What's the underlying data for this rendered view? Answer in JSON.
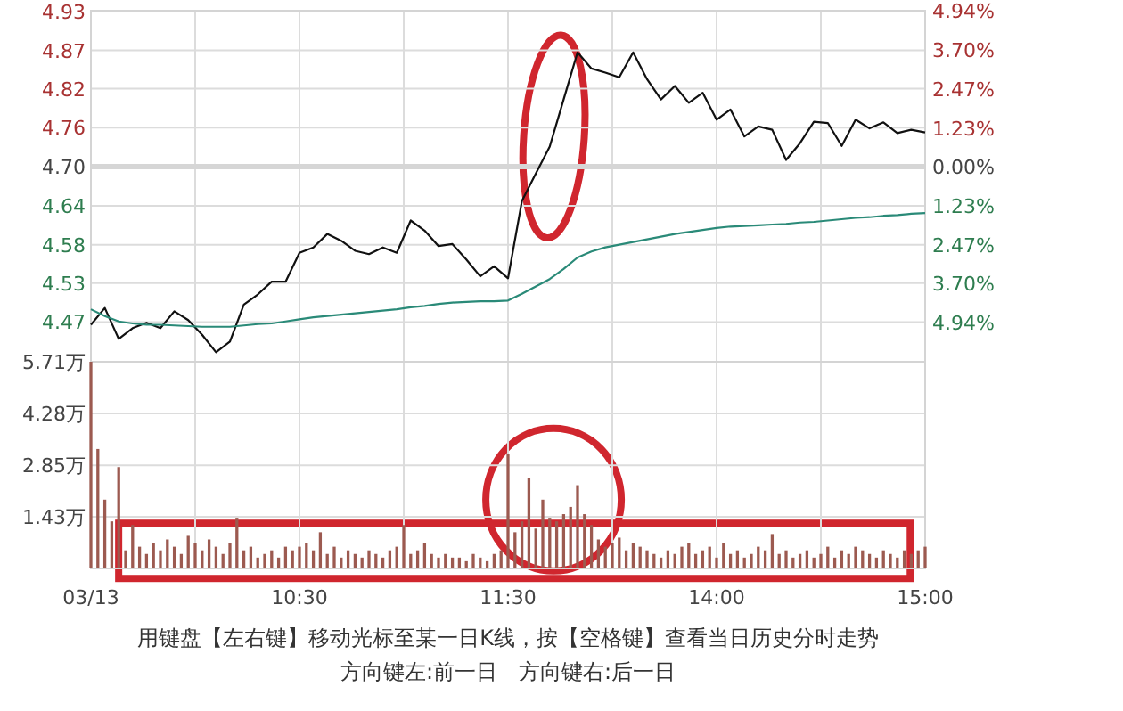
{
  "chart_data": [
    {
      "type": "line",
      "categories": [
        null,
        null,
        null,
        null,
        null,
        null,
        null,
        null,
        null,
        null,
        null,
        null,
        null,
        null,
        null,
        null,
        null,
        null,
        null,
        null,
        null,
        null,
        null,
        null,
        null,
        null,
        null,
        null,
        null,
        null,
        null,
        null,
        null,
        null,
        null,
        null,
        null,
        null,
        null,
        null,
        null,
        null,
        null,
        null,
        null,
        null,
        null,
        null,
        null,
        null,
        null,
        null,
        null,
        null,
        null,
        null,
        null,
        null,
        null,
        null,
        null
      ],
      "ylim": [
        4.41,
        4.932
      ],
      "yticks": [
        {
          "value": 4.931,
          "label": "4.93"
        },
        {
          "value": 4.873,
          "label": "4.87"
        },
        {
          "value": 4.816,
          "label": "4.82"
        },
        {
          "value": 4.758,
          "label": "4.76"
        },
        {
          "value": 4.7,
          "label": "4.70"
        },
        {
          "value": 4.642,
          "label": "4.64"
        },
        {
          "value": 4.584,
          "label": "4.58"
        },
        {
          "value": 4.527,
          "label": "4.53"
        },
        {
          "value": 4.469,
          "label": "4.47"
        }
      ],
      "y2lim": [
        -6.17,
        4.94
      ],
      "y2ticks": [
        {
          "value": 4.94,
          "label": "4.94%"
        },
        {
          "value": 3.7,
          "label": "3.70%"
        },
        {
          "value": 2.47,
          "label": "2.47%"
        },
        {
          "value": 1.23,
          "label": "1.23%"
        },
        {
          "value": 0,
          "label": "0.00%"
        },
        {
          "value": -1.23,
          "label": "1.23%"
        },
        {
          "value": -2.47,
          "label": "2.47%"
        },
        {
          "value": -3.7,
          "label": "3.70%"
        },
        {
          "value": -4.94,
          "label": "4.94%"
        }
      ],
      "grid": true,
      "tick_labels": "y",
      "ref_lines": [
        {
          "axis": "y",
          "value": 4.7,
          "color": "#d6d6d6"
        }
      ],
      "series": [
        {
          "color": "#111111",
          "values": [
            4.465,
            4.49,
            4.444,
            4.46,
            4.468,
            4.46,
            4.485,
            4.472,
            4.45,
            4.424,
            4.44,
            4.495,
            4.51,
            4.529,
            4.529,
            4.572,
            4.58,
            4.6,
            4.59,
            4.575,
            4.57,
            4.58,
            4.572,
            4.62,
            4.605,
            4.582,
            4.585,
            4.562,
            4.537,
            4.552,
            4.534,
            4.649,
            4.69,
            4.73,
            4.8,
            4.87,
            4.846,
            4.84,
            4.833,
            4.87,
            4.83,
            4.8,
            4.82,
            4.795,
            4.81,
            4.77,
            4.785,
            4.745,
            4.76,
            4.755,
            4.71,
            4.735,
            4.767,
            4.765,
            4.731,
            4.77,
            4.757,
            4.766,
            4.75,
            4.755,
            4.751
          ]
        },
        {
          "color": "#2a8a78",
          "values": [
            4.488,
            4.478,
            4.47,
            4.467,
            4.465,
            4.465,
            4.464,
            4.463,
            4.462,
            4.462,
            4.462,
            4.464,
            4.466,
            4.467,
            4.47,
            4.473,
            4.476,
            4.478,
            4.48,
            4.482,
            4.484,
            4.486,
            4.488,
            4.491,
            4.493,
            4.496,
            4.498,
            4.499,
            4.5,
            4.5,
            4.501,
            4.511,
            4.522,
            4.533,
            4.548,
            4.565,
            4.574,
            4.58,
            4.584,
            4.588,
            4.592,
            4.596,
            4.6,
            4.603,
            4.606,
            4.609,
            4.611,
            4.612,
            4.613,
            4.614,
            4.615,
            4.617,
            4.618,
            4.62,
            4.622,
            4.624,
            4.625,
            4.627,
            4.628,
            4.63,
            4.631
          ]
        }
      ]
    },
    {
      "type": "bar",
      "categories": [
        "03/13",
        null,
        null,
        null,
        null,
        null,
        null,
        null,
        null,
        null,
        null,
        null,
        null,
        null,
        null,
        null,
        null,
        null,
        null,
        null,
        null,
        null,
        null,
        null,
        null,
        null,
        null,
        null,
        null,
        null,
        "10:30",
        null,
        null,
        null,
        null,
        null,
        null,
        null,
        null,
        null,
        null,
        null,
        null,
        null,
        null,
        null,
        null,
        null,
        null,
        null,
        null,
        null,
        null,
        null,
        null,
        null,
        null,
        null,
        null,
        null,
        "11:30",
        null,
        null,
        null,
        null,
        null,
        null,
        null,
        null,
        null,
        null,
        null,
        null,
        null,
        null,
        null,
        null,
        null,
        null,
        null,
        null,
        null,
        null,
        null,
        null,
        null,
        null,
        null,
        null,
        null,
        "14:00",
        null,
        null,
        null,
        null,
        null,
        null,
        null,
        null,
        null,
        null,
        null,
        null,
        null,
        null,
        null,
        null,
        null,
        null,
        null,
        null,
        null,
        null,
        null,
        null,
        null,
        null,
        null,
        null,
        null,
        "15:00"
      ],
      "ylim": [
        0,
        5.71
      ],
      "yticks": [
        {
          "value": 1.43,
          "label": "1.43万"
        },
        {
          "value": 2.85,
          "label": "2.85万"
        },
        {
          "value": 4.28,
          "label": "4.28万"
        },
        {
          "value": 5.71,
          "label": "5.71万"
        }
      ],
      "grid": true,
      "color": "#9c5a50",
      "values": [
        5.71,
        3.3,
        1.9,
        1.3,
        2.8,
        0.5,
        1.2,
        0.6,
        0.4,
        0.7,
        0.5,
        0.8,
        0.6,
        0.4,
        0.9,
        0.7,
        0.5,
        0.8,
        0.6,
        0.4,
        0.7,
        1.4,
        0.5,
        0.6,
        0.3,
        0.4,
        0.5,
        0.3,
        0.6,
        0.5,
        0.6,
        0.7,
        0.5,
        1.0,
        0.4,
        0.6,
        0.3,
        0.5,
        0.4,
        0.3,
        0.5,
        0.4,
        0.3,
        0.5,
        0.6,
        1.2,
        0.4,
        0.5,
        0.7,
        0.4,
        0.3,
        0.4,
        0.3,
        0.3,
        0.2,
        0.4,
        0.3,
        0.2,
        0.4,
        0.5,
        3.15,
        1.0,
        1.3,
        2.5,
        1.1,
        1.9,
        1.4,
        1.3,
        1.5,
        1.7,
        2.3,
        1.5,
        1.2,
        0.8,
        0.6,
        0.7,
        0.85,
        0.5,
        0.7,
        0.6,
        0.5,
        0.4,
        0.3,
        0.5,
        0.4,
        0.6,
        0.7,
        0.4,
        0.5,
        0.6,
        0.3,
        0.7,
        0.4,
        0.5,
        0.3,
        0.4,
        0.6,
        0.5,
        0.95,
        0.4,
        0.5,
        0.3,
        0.4,
        0.5,
        0.3,
        0.4,
        0.6,
        0.3,
        0.5,
        0.4,
        0.6,
        0.5,
        0.4,
        0.3,
        0.5,
        0.4,
        0.3,
        0.5,
        0.4,
        0.5,
        0.6
      ],
      "annotations": [
        "用键盘【左右键】移动光标至某一日K线，按【空格键】查看当日历史分时走势",
        "方向键左:前一日　方向键右:后一日"
      ]
    }
  ]
}
